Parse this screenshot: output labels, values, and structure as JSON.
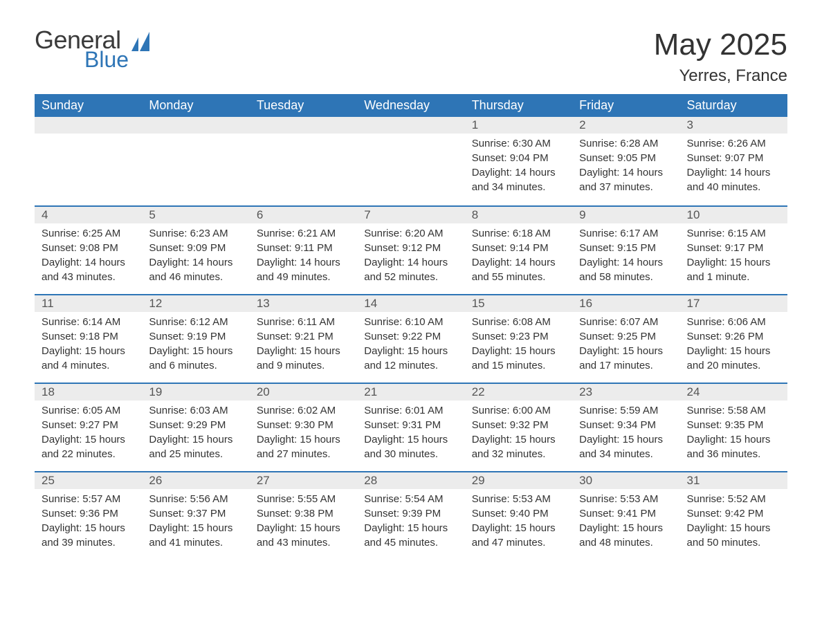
{
  "logo": {
    "general": "General",
    "blue": "Blue",
    "icon_color": "#2e75b6"
  },
  "title": "May 2025",
  "location": "Yerres, France",
  "colors": {
    "header_bg": "#2e75b6",
    "header_text": "#ffffff",
    "daynum_bg": "#ececec",
    "daynum_border": "#2e75b6",
    "body_text": "#333333",
    "page_bg": "#ffffff"
  },
  "weekdays": [
    "Sunday",
    "Monday",
    "Tuesday",
    "Wednesday",
    "Thursday",
    "Friday",
    "Saturday"
  ],
  "weeks": [
    [
      null,
      null,
      null,
      null,
      {
        "n": "1",
        "sunrise": "Sunrise: 6:30 AM",
        "sunset": "Sunset: 9:04 PM",
        "daylight": "Daylight: 14 hours and 34 minutes."
      },
      {
        "n": "2",
        "sunrise": "Sunrise: 6:28 AM",
        "sunset": "Sunset: 9:05 PM",
        "daylight": "Daylight: 14 hours and 37 minutes."
      },
      {
        "n": "3",
        "sunrise": "Sunrise: 6:26 AM",
        "sunset": "Sunset: 9:07 PM",
        "daylight": "Daylight: 14 hours and 40 minutes."
      }
    ],
    [
      {
        "n": "4",
        "sunrise": "Sunrise: 6:25 AM",
        "sunset": "Sunset: 9:08 PM",
        "daylight": "Daylight: 14 hours and 43 minutes."
      },
      {
        "n": "5",
        "sunrise": "Sunrise: 6:23 AM",
        "sunset": "Sunset: 9:09 PM",
        "daylight": "Daylight: 14 hours and 46 minutes."
      },
      {
        "n": "6",
        "sunrise": "Sunrise: 6:21 AM",
        "sunset": "Sunset: 9:11 PM",
        "daylight": "Daylight: 14 hours and 49 minutes."
      },
      {
        "n": "7",
        "sunrise": "Sunrise: 6:20 AM",
        "sunset": "Sunset: 9:12 PM",
        "daylight": "Daylight: 14 hours and 52 minutes."
      },
      {
        "n": "8",
        "sunrise": "Sunrise: 6:18 AM",
        "sunset": "Sunset: 9:14 PM",
        "daylight": "Daylight: 14 hours and 55 minutes."
      },
      {
        "n": "9",
        "sunrise": "Sunrise: 6:17 AM",
        "sunset": "Sunset: 9:15 PM",
        "daylight": "Daylight: 14 hours and 58 minutes."
      },
      {
        "n": "10",
        "sunrise": "Sunrise: 6:15 AM",
        "sunset": "Sunset: 9:17 PM",
        "daylight": "Daylight: 15 hours and 1 minute."
      }
    ],
    [
      {
        "n": "11",
        "sunrise": "Sunrise: 6:14 AM",
        "sunset": "Sunset: 9:18 PM",
        "daylight": "Daylight: 15 hours and 4 minutes."
      },
      {
        "n": "12",
        "sunrise": "Sunrise: 6:12 AM",
        "sunset": "Sunset: 9:19 PM",
        "daylight": "Daylight: 15 hours and 6 minutes."
      },
      {
        "n": "13",
        "sunrise": "Sunrise: 6:11 AM",
        "sunset": "Sunset: 9:21 PM",
        "daylight": "Daylight: 15 hours and 9 minutes."
      },
      {
        "n": "14",
        "sunrise": "Sunrise: 6:10 AM",
        "sunset": "Sunset: 9:22 PM",
        "daylight": "Daylight: 15 hours and 12 minutes."
      },
      {
        "n": "15",
        "sunrise": "Sunrise: 6:08 AM",
        "sunset": "Sunset: 9:23 PM",
        "daylight": "Daylight: 15 hours and 15 minutes."
      },
      {
        "n": "16",
        "sunrise": "Sunrise: 6:07 AM",
        "sunset": "Sunset: 9:25 PM",
        "daylight": "Daylight: 15 hours and 17 minutes."
      },
      {
        "n": "17",
        "sunrise": "Sunrise: 6:06 AM",
        "sunset": "Sunset: 9:26 PM",
        "daylight": "Daylight: 15 hours and 20 minutes."
      }
    ],
    [
      {
        "n": "18",
        "sunrise": "Sunrise: 6:05 AM",
        "sunset": "Sunset: 9:27 PM",
        "daylight": "Daylight: 15 hours and 22 minutes."
      },
      {
        "n": "19",
        "sunrise": "Sunrise: 6:03 AM",
        "sunset": "Sunset: 9:29 PM",
        "daylight": "Daylight: 15 hours and 25 minutes."
      },
      {
        "n": "20",
        "sunrise": "Sunrise: 6:02 AM",
        "sunset": "Sunset: 9:30 PM",
        "daylight": "Daylight: 15 hours and 27 minutes."
      },
      {
        "n": "21",
        "sunrise": "Sunrise: 6:01 AM",
        "sunset": "Sunset: 9:31 PM",
        "daylight": "Daylight: 15 hours and 30 minutes."
      },
      {
        "n": "22",
        "sunrise": "Sunrise: 6:00 AM",
        "sunset": "Sunset: 9:32 PM",
        "daylight": "Daylight: 15 hours and 32 minutes."
      },
      {
        "n": "23",
        "sunrise": "Sunrise: 5:59 AM",
        "sunset": "Sunset: 9:34 PM",
        "daylight": "Daylight: 15 hours and 34 minutes."
      },
      {
        "n": "24",
        "sunrise": "Sunrise: 5:58 AM",
        "sunset": "Sunset: 9:35 PM",
        "daylight": "Daylight: 15 hours and 36 minutes."
      }
    ],
    [
      {
        "n": "25",
        "sunrise": "Sunrise: 5:57 AM",
        "sunset": "Sunset: 9:36 PM",
        "daylight": "Daylight: 15 hours and 39 minutes."
      },
      {
        "n": "26",
        "sunrise": "Sunrise: 5:56 AM",
        "sunset": "Sunset: 9:37 PM",
        "daylight": "Daylight: 15 hours and 41 minutes."
      },
      {
        "n": "27",
        "sunrise": "Sunrise: 5:55 AM",
        "sunset": "Sunset: 9:38 PM",
        "daylight": "Daylight: 15 hours and 43 minutes."
      },
      {
        "n": "28",
        "sunrise": "Sunrise: 5:54 AM",
        "sunset": "Sunset: 9:39 PM",
        "daylight": "Daylight: 15 hours and 45 minutes."
      },
      {
        "n": "29",
        "sunrise": "Sunrise: 5:53 AM",
        "sunset": "Sunset: 9:40 PM",
        "daylight": "Daylight: 15 hours and 47 minutes."
      },
      {
        "n": "30",
        "sunrise": "Sunrise: 5:53 AM",
        "sunset": "Sunset: 9:41 PM",
        "daylight": "Daylight: 15 hours and 48 minutes."
      },
      {
        "n": "31",
        "sunrise": "Sunrise: 5:52 AM",
        "sunset": "Sunset: 9:42 PM",
        "daylight": "Daylight: 15 hours and 50 minutes."
      }
    ]
  ]
}
